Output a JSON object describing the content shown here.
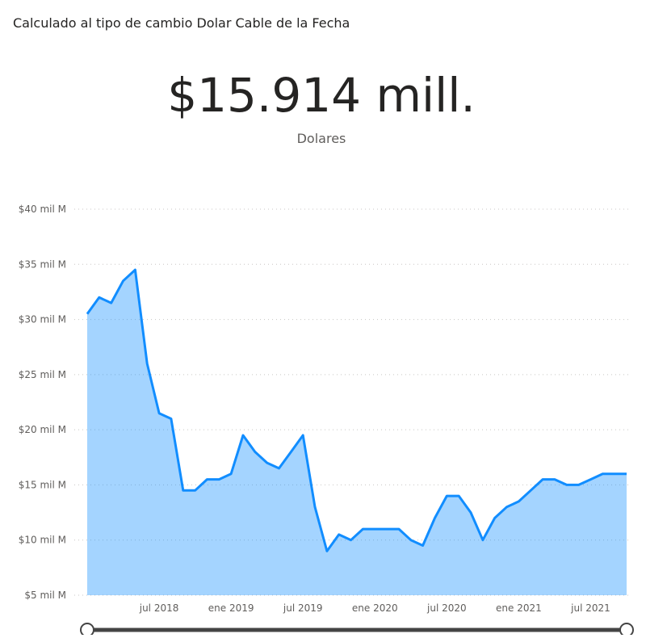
{
  "header": {
    "title": "Calculado al tipo de cambio Dolar Cable de la Fecha"
  },
  "card": {
    "value": "$15.914 mill.",
    "label": "Dolares"
  },
  "chart_data": {
    "type": "area",
    "x": [
      "2018-01",
      "2018-02",
      "2018-03",
      "2018-04",
      "2018-05",
      "2018-06",
      "2018-07",
      "2018-08",
      "2018-09",
      "2018-10",
      "2018-11",
      "2018-12",
      "2019-01",
      "2019-02",
      "2019-03",
      "2019-04",
      "2019-05",
      "2019-06",
      "2019-07",
      "2019-08",
      "2019-09",
      "2019-10",
      "2019-11",
      "2019-12",
      "2020-01",
      "2020-02",
      "2020-03",
      "2020-04",
      "2020-05",
      "2020-06",
      "2020-07",
      "2020-08",
      "2020-09",
      "2020-10",
      "2020-11",
      "2020-12",
      "2021-01",
      "2021-02",
      "2021-03",
      "2021-04",
      "2021-05",
      "2021-06",
      "2021-07",
      "2021-08",
      "2021-09",
      "2021-10"
    ],
    "series": [
      {
        "color": "#118dff",
        "values": [
          30.5,
          32,
          31.5,
          33.5,
          34.5,
          26,
          21.5,
          21,
          14.5,
          14.5,
          15.5,
          15.5,
          16,
          19.5,
          18,
          17,
          16.5,
          18,
          19.5,
          13,
          9,
          10.5,
          10,
          11,
          11,
          11,
          11,
          10,
          9.5,
          12,
          14,
          14,
          12.5,
          10,
          12,
          13,
          13.5,
          14.5,
          15.5,
          15.5,
          15,
          15,
          15.5,
          16,
          16,
          16
        ]
      }
    ],
    "xlim": [
      "2018-01",
      "2021-10"
    ],
    "xticks": [
      {
        "value": "2018-07",
        "label": "jul 2018"
      },
      {
        "value": "2019-01",
        "label": "ene 2019"
      },
      {
        "value": "2019-07",
        "label": "jul 2019"
      },
      {
        "value": "2020-01",
        "label": "ene 2020"
      },
      {
        "value": "2020-07",
        "label": "jul 2020"
      },
      {
        "value": "2021-01",
        "label": "ene 2021"
      },
      {
        "value": "2021-07",
        "label": "jul 2021"
      }
    ],
    "ylim": [
      5,
      40
    ],
    "yticks": [
      {
        "value": 5,
        "label": "$5 mil M"
      },
      {
        "value": 10,
        "label": "$10 mil M"
      },
      {
        "value": 15,
        "label": "$15 mil M"
      },
      {
        "value": 20,
        "label": "$20 mil M"
      },
      {
        "value": 25,
        "label": "$25 mil M"
      },
      {
        "value": 30,
        "label": "$30 mil M"
      },
      {
        "value": 35,
        "label": "$35 mil M"
      },
      {
        "value": 40,
        "label": "$40 mil M"
      }
    ],
    "grid": true
  }
}
